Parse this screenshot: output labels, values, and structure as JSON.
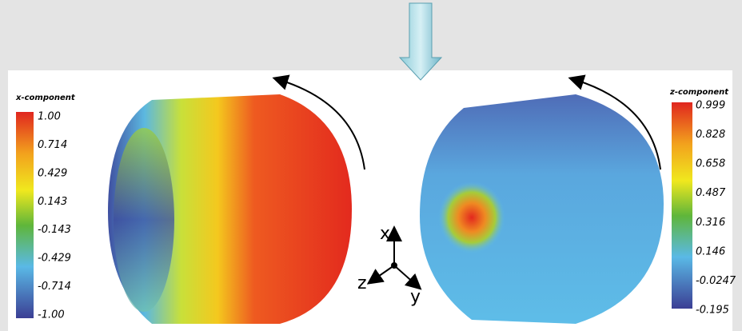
{
  "left_colorbar": {
    "title": "x-component",
    "labels": [
      "1.00",
      "0.714",
      "0.429",
      "0.143",
      "-0.143",
      "-0.429",
      "-0.714",
      "-1.00"
    ]
  },
  "right_colorbar": {
    "title": "z-component",
    "labels": [
      "0.999",
      "0.828",
      "0.658",
      "0.487",
      "0.316",
      "0.146",
      "-0.0247",
      "-0.195"
    ]
  },
  "axes": {
    "x": "x",
    "y": "y",
    "z": "z"
  }
}
